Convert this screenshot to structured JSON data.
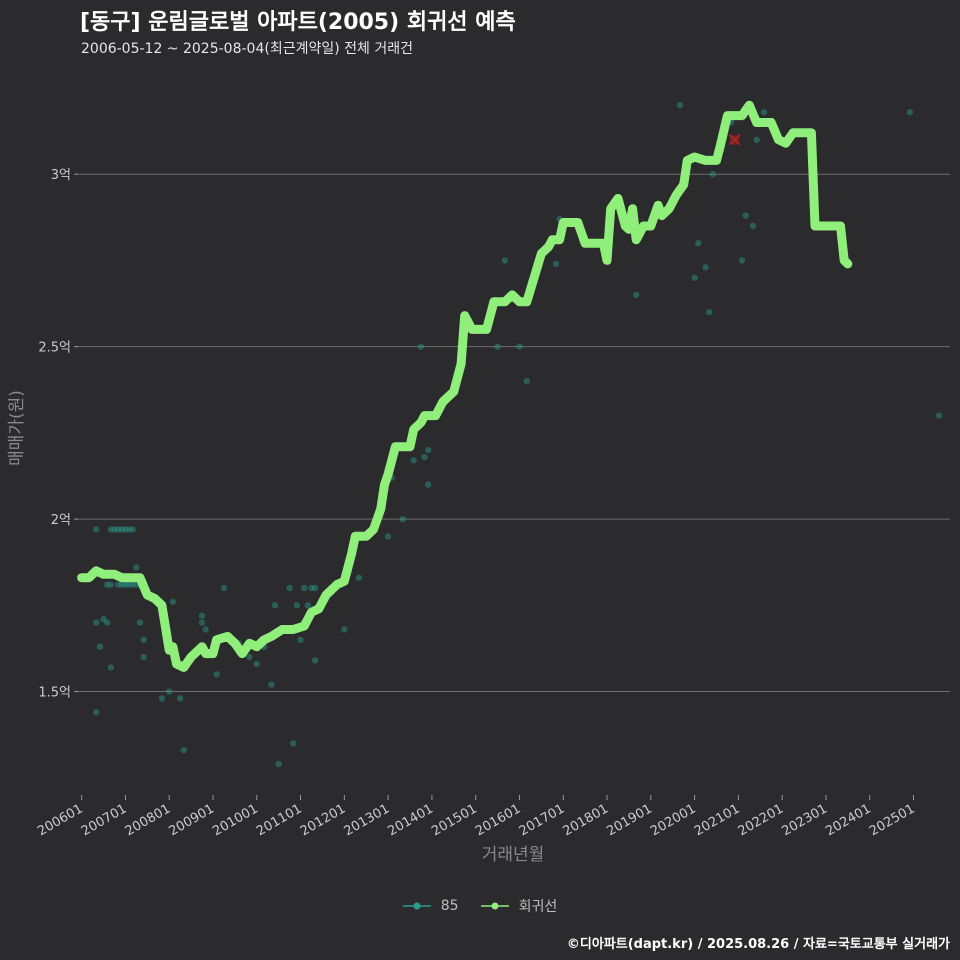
{
  "chart_data": {
    "type": "scatter+line",
    "title": "[동구] 운림글로벌 아파트(2005) 회귀선 예측",
    "subtitle": "2006-05-12 ~ 2025-08-04(최근계약일) 전체 거래건",
    "xlabel": "거래년월",
    "ylabel": "매매가(원)",
    "x_unit": "months since 2006-01",
    "xlim": [
      -1,
      238
    ],
    "ylim": [
      1.2,
      3.25
    ],
    "y_ticks": [
      {
        "value": 1.5,
        "label": "1.5억"
      },
      {
        "value": 2.0,
        "label": "2억"
      },
      {
        "value": 2.5,
        "label": "2.5억"
      },
      {
        "value": 3.0,
        "label": "3억"
      }
    ],
    "x_ticks": [
      {
        "value": 0,
        "label": "200601"
      },
      {
        "value": 12,
        "label": "200701"
      },
      {
        "value": 24,
        "label": "200801"
      },
      {
        "value": 36,
        "label": "200901"
      },
      {
        "value": 48,
        "label": "201001"
      },
      {
        "value": 60,
        "label": "201101"
      },
      {
        "value": 72,
        "label": "201201"
      },
      {
        "value": 84,
        "label": "201301"
      },
      {
        "value": 96,
        "label": "201401"
      },
      {
        "value": 108,
        "label": "201501"
      },
      {
        "value": 120,
        "label": "201601"
      },
      {
        "value": 132,
        "label": "201701"
      },
      {
        "value": 144,
        "label": "201801"
      },
      {
        "value": 156,
        "label": "201901"
      },
      {
        "value": 168,
        "label": "202001"
      },
      {
        "value": 180,
        "label": "202101"
      },
      {
        "value": 192,
        "label": "202201"
      },
      {
        "value": 204,
        "label": "202301"
      },
      {
        "value": 216,
        "label": "202401"
      },
      {
        "value": 228,
        "label": "202501"
      }
    ],
    "series": [
      {
        "name": "85",
        "type": "scatter",
        "color": "#2a9d8f",
        "points": [
          [
            4,
            1.97
          ],
          [
            8,
            1.97
          ],
          [
            9,
            1.97
          ],
          [
            10,
            1.97
          ],
          [
            11,
            1.97
          ],
          [
            13,
            1.97
          ],
          [
            14,
            1.97
          ],
          [
            12,
            1.97
          ],
          [
            7,
            1.81
          ],
          [
            8,
            1.81
          ],
          [
            10,
            1.81
          ],
          [
            11,
            1.81
          ],
          [
            12,
            1.81
          ],
          [
            13,
            1.81
          ],
          [
            14,
            1.81
          ],
          [
            15,
            1.81
          ],
          [
            16,
            1.81
          ],
          [
            4,
            1.7
          ],
          [
            5,
            1.63
          ],
          [
            6,
            1.71
          ],
          [
            7,
            1.7
          ],
          [
            8,
            1.57
          ],
          [
            16,
            1.7
          ],
          [
            17,
            1.65
          ],
          [
            15,
            1.86
          ],
          [
            4,
            1.44
          ],
          [
            17,
            1.6
          ],
          [
            22,
            1.48
          ],
          [
            24,
            1.5
          ],
          [
            25,
            1.76
          ],
          [
            27,
            1.48
          ],
          [
            28,
            1.33
          ],
          [
            33,
            1.72
          ],
          [
            33,
            1.7
          ],
          [
            34,
            1.68
          ],
          [
            37,
            1.55
          ],
          [
            39,
            1.8
          ],
          [
            43,
            1.64
          ],
          [
            46,
            1.6
          ],
          [
            48,
            1.58
          ],
          [
            50,
            1.63
          ],
          [
            52,
            1.52
          ],
          [
            53,
            1.75
          ],
          [
            54,
            1.29
          ],
          [
            57,
            1.8
          ],
          [
            58,
            1.35
          ],
          [
            59,
            1.75
          ],
          [
            60,
            1.65
          ],
          [
            61,
            1.8
          ],
          [
            62,
            1.75
          ],
          [
            63,
            1.8
          ],
          [
            64,
            1.59
          ],
          [
            64,
            1.8
          ],
          [
            72,
            1.68
          ],
          [
            76,
            1.83
          ],
          [
            84,
            1.95
          ],
          [
            88,
            2.0
          ],
          [
            85,
            2.12
          ],
          [
            91,
            2.17
          ],
          [
            93,
            2.5
          ],
          [
            94,
            2.18
          ],
          [
            95,
            2.2
          ],
          [
            95,
            2.1
          ],
          [
            114,
            2.5
          ],
          [
            116,
            2.75
          ],
          [
            120,
            2.5
          ],
          [
            122,
            2.4
          ],
          [
            130,
            2.74
          ],
          [
            131,
            2.87
          ],
          [
            150,
            2.85
          ],
          [
            152,
            2.65
          ],
          [
            164,
            3.2
          ],
          [
            168,
            2.7
          ],
          [
            169,
            2.8
          ],
          [
            171,
            2.73
          ],
          [
            172,
            2.6
          ],
          [
            173,
            3.0
          ],
          [
            178,
            3.15
          ],
          [
            181,
            2.75
          ],
          [
            182,
            2.88
          ],
          [
            184,
            2.85
          ],
          [
            185,
            3.1
          ],
          [
            187,
            3.18
          ],
          [
            227,
            3.18
          ],
          [
            235,
            2.3
          ]
        ]
      },
      {
        "name": "회귀선",
        "type": "line",
        "color": "#90ee7a",
        "points": [
          [
            0,
            1.83
          ],
          [
            2,
            1.83
          ],
          [
            4,
            1.85
          ],
          [
            6,
            1.84
          ],
          [
            9,
            1.84
          ],
          [
            11,
            1.83
          ],
          [
            14,
            1.83
          ],
          [
            16,
            1.83
          ],
          [
            18,
            1.78
          ],
          [
            20,
            1.77
          ],
          [
            22,
            1.75
          ],
          [
            24,
            1.62
          ],
          [
            25,
            1.63
          ],
          [
            26,
            1.58
          ],
          [
            28,
            1.57
          ],
          [
            30,
            1.6
          ],
          [
            32,
            1.62
          ],
          [
            33,
            1.63
          ],
          [
            34,
            1.61
          ],
          [
            36,
            1.61
          ],
          [
            37,
            1.65
          ],
          [
            40,
            1.66
          ],
          [
            42,
            1.64
          ],
          [
            44,
            1.61
          ],
          [
            46,
            1.64
          ],
          [
            48,
            1.63
          ],
          [
            50,
            1.65
          ],
          [
            52,
            1.66
          ],
          [
            55,
            1.68
          ],
          [
            58,
            1.68
          ],
          [
            61,
            1.69
          ],
          [
            63,
            1.73
          ],
          [
            65,
            1.74
          ],
          [
            67,
            1.78
          ],
          [
            70,
            1.81
          ],
          [
            72,
            1.82
          ],
          [
            74,
            1.9
          ],
          [
            75,
            1.95
          ],
          [
            78,
            1.95
          ],
          [
            80,
            1.97
          ],
          [
            82,
            2.03
          ],
          [
            83,
            2.1
          ],
          [
            84,
            2.13
          ],
          [
            86,
            2.21
          ],
          [
            90,
            2.21
          ],
          [
            91,
            2.26
          ],
          [
            93,
            2.28
          ],
          [
            94,
            2.3
          ],
          [
            97,
            2.3
          ],
          [
            99,
            2.34
          ],
          [
            102,
            2.37
          ],
          [
            104,
            2.45
          ],
          [
            105,
            2.59
          ],
          [
            107,
            2.55
          ],
          [
            111,
            2.55
          ],
          [
            113,
            2.63
          ],
          [
            116,
            2.63
          ],
          [
            118,
            2.65
          ],
          [
            120,
            2.63
          ],
          [
            122,
            2.63
          ],
          [
            124,
            2.7
          ],
          [
            126,
            2.77
          ],
          [
            128,
            2.79
          ],
          [
            129,
            2.81
          ],
          [
            131,
            2.81
          ],
          [
            132,
            2.86
          ],
          [
            136,
            2.86
          ],
          [
            138,
            2.8
          ],
          [
            140,
            2.8
          ],
          [
            143,
            2.8
          ],
          [
            144,
            2.75
          ],
          [
            145,
            2.9
          ],
          [
            147,
            2.93
          ],
          [
            149,
            2.85
          ],
          [
            150,
            2.84
          ],
          [
            151,
            2.9
          ],
          [
            152,
            2.81
          ],
          [
            154,
            2.85
          ],
          [
            156,
            2.85
          ],
          [
            158,
            2.91
          ],
          [
            159,
            2.88
          ],
          [
            161,
            2.9
          ],
          [
            163,
            2.94
          ],
          [
            165,
            2.97
          ],
          [
            166,
            3.04
          ],
          [
            168,
            3.05
          ],
          [
            171,
            3.04
          ],
          [
            174,
            3.04
          ],
          [
            175,
            3.08
          ],
          [
            177,
            3.17
          ],
          [
            181,
            3.17
          ],
          [
            183,
            3.2
          ],
          [
            185,
            3.15
          ],
          [
            189,
            3.15
          ],
          [
            191,
            3.1
          ],
          [
            193,
            3.09
          ],
          [
            195,
            3.12
          ],
          [
            200,
            3.12
          ],
          [
            201,
            2.85
          ],
          [
            208,
            2.85
          ],
          [
            209,
            2.75
          ],
          [
            210,
            2.74
          ]
        ]
      }
    ],
    "highlight_marker": {
      "x": 179,
      "y": 3.1,
      "symbol": "x",
      "color": "#b22222"
    },
    "legend": {
      "position": "bottom",
      "labels": [
        "85",
        "회귀선"
      ]
    }
  },
  "source": "©디아파트(dapt.kr) / 2025.08.26 / 자료=국토교통부 실거래가",
  "colors": {
    "background": "#2b2a2c",
    "grid": "#6e6e6e",
    "text": "#cccccc"
  }
}
